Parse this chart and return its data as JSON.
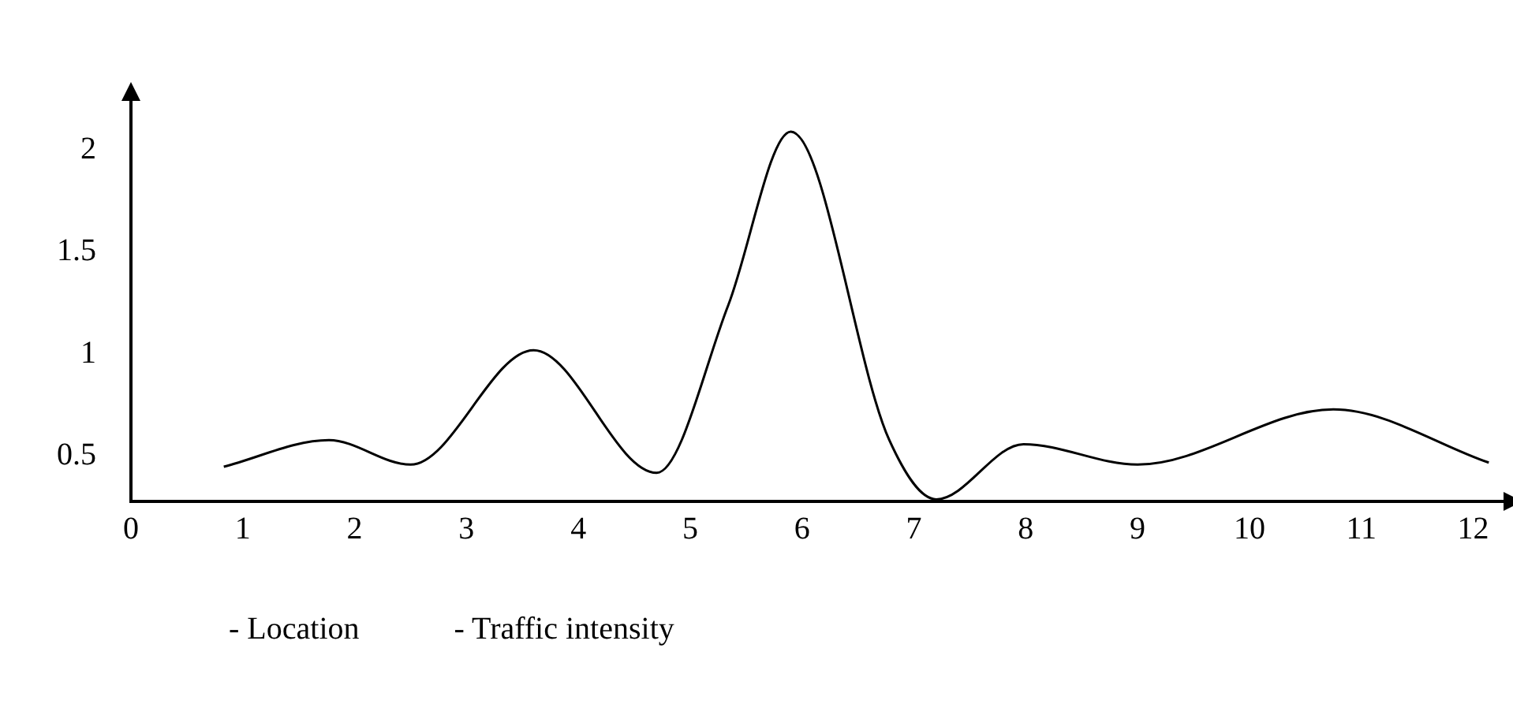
{
  "chart_data": {
    "type": "line",
    "x": [
      0.83,
      1.77,
      2.5,
      3.6,
      4.7,
      5.34,
      5.9,
      6.78,
      7.2,
      7.98,
      9,
      10.75,
      12.14
    ],
    "values": [
      0.45,
      0.58,
      0.46,
      1.02,
      0.42,
      1.24,
      2.09,
      0.58,
      0.29,
      0.56,
      0.46,
      0.73,
      0.47
    ],
    "color": "#000000",
    "marker": "none",
    "line_style": "solid",
    "xlim": [
      0,
      12.3
    ],
    "xticks": [
      0,
      1,
      2,
      3,
      4,
      5,
      6,
      7,
      8,
      9,
      10,
      11,
      12
    ],
    "ylim": [
      0.28,
      2.24
    ],
    "yticks": [
      0.5,
      1,
      1.5,
      2
    ],
    "annotations": [
      "- Location",
      "- Traffic intensity"
    ]
  }
}
